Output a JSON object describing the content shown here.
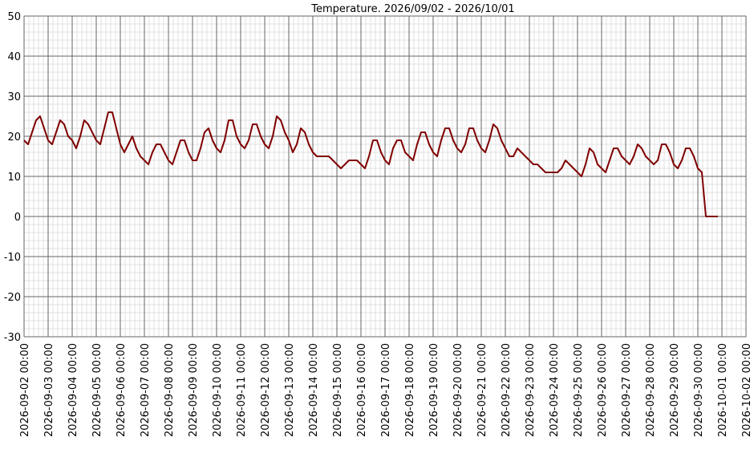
{
  "chart_data": {
    "type": "line",
    "title": "Temperature. 2026/09/02 - 2026/10/01",
    "x": [
      "2026-09-02 00:00",
      "2026-09-02 04:00",
      "2026-09-02 08:00",
      "2026-09-02 12:00",
      "2026-09-02 16:00",
      "2026-09-02 20:00",
      "2026-09-03 00:00",
      "2026-09-03 04:00",
      "2026-09-03 08:00",
      "2026-09-03 12:00",
      "2026-09-03 16:00",
      "2026-09-03 20:00",
      "2026-09-04 00:00",
      "2026-09-04 04:00",
      "2026-09-04 08:00",
      "2026-09-04 12:00",
      "2026-09-04 16:00",
      "2026-09-04 20:00",
      "2026-09-05 00:00",
      "2026-09-05 04:00",
      "2026-09-05 08:00",
      "2026-09-05 12:00",
      "2026-09-05 16:00",
      "2026-09-05 20:00",
      "2026-09-06 00:00",
      "2026-09-06 04:00",
      "2026-09-06 08:00",
      "2026-09-06 12:00",
      "2026-09-06 16:00",
      "2026-09-06 20:00",
      "2026-09-07 00:00",
      "2026-09-07 04:00",
      "2026-09-07 08:00",
      "2026-09-07 12:00",
      "2026-09-07 16:00",
      "2026-09-07 20:00",
      "2026-09-08 00:00",
      "2026-09-08 04:00",
      "2026-09-08 08:00",
      "2026-09-08 12:00",
      "2026-09-08 16:00",
      "2026-09-08 20:00",
      "2026-09-09 00:00",
      "2026-09-09 04:00",
      "2026-09-09 08:00",
      "2026-09-09 12:00",
      "2026-09-09 16:00",
      "2026-09-09 20:00",
      "2026-09-10 00:00",
      "2026-09-10 04:00",
      "2026-09-10 08:00",
      "2026-09-10 12:00",
      "2026-09-10 16:00",
      "2026-09-10 20:00",
      "2026-09-11 00:00",
      "2026-09-11 04:00",
      "2026-09-11 08:00",
      "2026-09-11 12:00",
      "2026-09-11 16:00",
      "2026-09-11 20:00",
      "2026-09-12 00:00",
      "2026-09-12 04:00",
      "2026-09-12 08:00",
      "2026-09-12 12:00",
      "2026-09-12 16:00",
      "2026-09-12 20:00",
      "2026-09-13 00:00",
      "2026-09-13 04:00",
      "2026-09-13 08:00",
      "2026-09-13 12:00",
      "2026-09-13 16:00",
      "2026-09-13 20:00",
      "2026-09-14 00:00",
      "2026-09-14 04:00",
      "2026-09-14 08:00",
      "2026-09-14 12:00",
      "2026-09-14 16:00",
      "2026-09-14 20:00",
      "2026-09-15 00:00",
      "2026-09-15 04:00",
      "2026-09-15 08:00",
      "2026-09-15 12:00",
      "2026-09-15 16:00",
      "2026-09-15 20:00",
      "2026-09-16 00:00",
      "2026-09-16 04:00",
      "2026-09-16 08:00",
      "2026-09-16 12:00",
      "2026-09-16 16:00",
      "2026-09-16 20:00",
      "2026-09-17 00:00",
      "2026-09-17 04:00",
      "2026-09-17 08:00",
      "2026-09-17 12:00",
      "2026-09-17 16:00",
      "2026-09-17 20:00",
      "2026-09-18 00:00",
      "2026-09-18 04:00",
      "2026-09-18 08:00",
      "2026-09-18 12:00",
      "2026-09-18 16:00",
      "2026-09-18 20:00",
      "2026-09-19 00:00",
      "2026-09-19 04:00",
      "2026-09-19 08:00",
      "2026-09-19 12:00",
      "2026-09-19 16:00",
      "2026-09-19 20:00",
      "2026-09-20 00:00",
      "2026-09-20 04:00",
      "2026-09-20 08:00",
      "2026-09-20 12:00",
      "2026-09-20 16:00",
      "2026-09-20 20:00",
      "2026-09-21 00:00",
      "2026-09-21 04:00",
      "2026-09-21 08:00",
      "2026-09-21 12:00",
      "2026-09-21 16:00",
      "2026-09-21 20:00",
      "2026-09-22 00:00",
      "2026-09-22 04:00",
      "2026-09-22 08:00",
      "2026-09-22 12:00",
      "2026-09-22 16:00",
      "2026-09-22 20:00",
      "2026-09-23 00:00",
      "2026-09-23 04:00",
      "2026-09-23 08:00",
      "2026-09-23 12:00",
      "2026-09-23 16:00",
      "2026-09-23 20:00",
      "2026-09-24 00:00",
      "2026-09-24 04:00",
      "2026-09-24 08:00",
      "2026-09-24 12:00",
      "2026-09-24 16:00",
      "2026-09-24 20:00",
      "2026-09-25 00:00",
      "2026-09-25 04:00",
      "2026-09-25 08:00",
      "2026-09-25 12:00",
      "2026-09-25 16:00",
      "2026-09-25 20:00",
      "2026-09-26 00:00",
      "2026-09-26 04:00",
      "2026-09-26 08:00",
      "2026-09-26 12:00",
      "2026-09-26 16:00",
      "2026-09-26 20:00",
      "2026-09-27 00:00",
      "2026-09-27 04:00",
      "2026-09-27 08:00",
      "2026-09-27 12:00",
      "2026-09-27 16:00",
      "2026-09-27 20:00",
      "2026-09-28 00:00",
      "2026-09-28 04:00",
      "2026-09-28 08:00",
      "2026-09-28 12:00",
      "2026-09-28 16:00",
      "2026-09-28 20:00",
      "2026-09-29 00:00",
      "2026-09-29 04:00",
      "2026-09-29 08:00",
      "2026-09-29 12:00",
      "2026-09-29 16:00",
      "2026-09-29 20:00",
      "2026-09-30 00:00",
      "2026-09-30 04:00",
      "2026-09-30 08:00",
      "2026-09-30 12:00",
      "2026-09-30 16:00",
      "2026-09-30 20:00"
    ],
    "series": [
      {
        "color": "#800000",
        "values": [
          19,
          18,
          21,
          24,
          25,
          22,
          19,
          18,
          21,
          24,
          23,
          20,
          19,
          17,
          20,
          24,
          23,
          21,
          19,
          18,
          22,
          26,
          26,
          22,
          18,
          16,
          18,
          20,
          17,
          15,
          14,
          13,
          16,
          18,
          18,
          16,
          14,
          13,
          16,
          19,
          19,
          16,
          14,
          14,
          17,
          21,
          22,
          19,
          17,
          16,
          19,
          24,
          24,
          20,
          18,
          17,
          19,
          23,
          23,
          20,
          18,
          17,
          20,
          25,
          24,
          21,
          19,
          16,
          18,
          22,
          21,
          18,
          16,
          15,
          15,
          15,
          15,
          14,
          13,
          12,
          13,
          14,
          14,
          14,
          13,
          12,
          15,
          19,
          19,
          16,
          14,
          13,
          17,
          19,
          19,
          16,
          15,
          14,
          18,
          21,
          21,
          18,
          16,
          15,
          19,
          22,
          22,
          19,
          17,
          16,
          18,
          22,
          22,
          19,
          17,
          16,
          19,
          23,
          22,
          19,
          17,
          15,
          15,
          17,
          16,
          15,
          14,
          13,
          13,
          12,
          11,
          11,
          11,
          11,
          12,
          14,
          13,
          12,
          11,
          10,
          13,
          17,
          16,
          13,
          12,
          11,
          14,
          17,
          17,
          15,
          14,
          13,
          15,
          18,
          17,
          15,
          14,
          13,
          14,
          18,
          18,
          16,
          13,
          12,
          14,
          17,
          17,
          15,
          12,
          11,
          0,
          0,
          0,
          0
        ]
      }
    ],
    "xlim": [
      "2026-09-02 00:00",
      "2026-10-02 00:00"
    ],
    "xticks": [
      "2026-09-02 00:00",
      "2026-09-03 00:00",
      "2026-09-04 00:00",
      "2026-09-05 00:00",
      "2026-09-06 00:00",
      "2026-09-07 00:00",
      "2026-09-08 00:00",
      "2026-09-09 00:00",
      "2026-09-10 00:00",
      "2026-09-11 00:00",
      "2026-09-12 00:00",
      "2026-09-13 00:00",
      "2026-09-14 00:00",
      "2026-09-15 00:00",
      "2026-09-16 00:00",
      "2026-09-17 00:00",
      "2026-09-18 00:00",
      "2026-09-19 00:00",
      "2026-09-20 00:00",
      "2026-09-21 00:00",
      "2026-09-22 00:00",
      "2026-09-23 00:00",
      "2026-09-24 00:00",
      "2026-09-25 00:00",
      "2026-09-26 00:00",
      "2026-09-27 00:00",
      "2026-09-28 00:00",
      "2026-09-29 00:00",
      "2026-09-30 00:00",
      "2026-10-01 00:00",
      "2026-10-02 00:00"
    ],
    "ylim": [
      -30,
      50
    ],
    "yticks": [
      -30,
      -20,
      -10,
      0,
      10,
      20,
      30,
      40,
      50
    ],
    "grid": true,
    "minor_grid": true
  }
}
